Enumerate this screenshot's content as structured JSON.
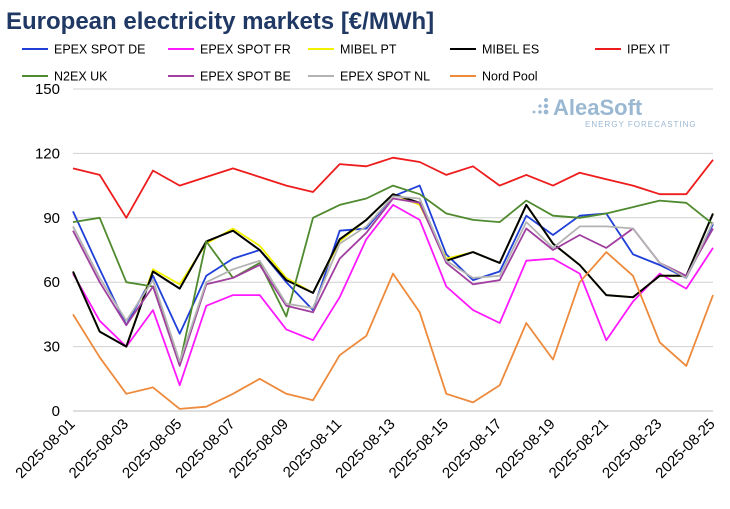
{
  "chart_data": {
    "type": "line",
    "title": "European electricity markets [€/MWh]",
    "ylim": [
      0,
      150
    ],
    "yticks": [
      0,
      30,
      60,
      90,
      120,
      150
    ],
    "x": [
      "2025-08-01",
      "2025-08-02",
      "2025-08-03",
      "2025-08-04",
      "2025-08-05",
      "2025-08-06",
      "2025-08-07",
      "2025-08-08",
      "2025-08-09",
      "2025-08-10",
      "2025-08-11",
      "2025-08-12",
      "2025-08-13",
      "2025-08-14",
      "2025-08-15",
      "2025-08-16",
      "2025-08-17",
      "2025-08-18",
      "2025-08-19",
      "2025-08-20",
      "2025-08-21",
      "2025-08-22",
      "2025-08-23",
      "2025-08-24",
      "2025-08-25"
    ],
    "xtick_labels": [
      "2025-08-01",
      "2025-08-03",
      "2025-08-05",
      "2025-08-07",
      "2025-08-09",
      "2025-08-11",
      "2025-08-13",
      "2025-08-15",
      "2025-08-17",
      "2025-08-19",
      "2025-08-21",
      "2025-08-23",
      "2025-08-25"
    ],
    "grid": "horizontal",
    "legend_position": "top",
    "series": [
      {
        "name": "EPEX SPOT DE",
        "color": "#1f3fd8",
        "values": [
          93,
          66,
          40,
          63,
          36,
          63,
          71,
          75,
          60,
          47,
          84,
          85,
          100,
          105,
          73,
          61,
          65,
          91,
          82,
          91,
          92,
          73,
          68,
          62,
          87
        ]
      },
      {
        "name": "EPEX SPOT FR",
        "color": "#ff19ff",
        "values": [
          64,
          42,
          30,
          47,
          12,
          49,
          54,
          54,
          38,
          33,
          53,
          80,
          96,
          89,
          58,
          47,
          41,
          70,
          71,
          64,
          33,
          51,
          64,
          57,
          76
        ]
      },
      {
        "name": "MIBEL PT",
        "color": "#f2f200",
        "values": [
          65,
          37,
          30,
          66,
          59,
          78,
          85,
          77,
          62,
          55,
          79,
          89,
          101,
          96,
          71,
          74,
          69,
          96,
          78,
          68,
          54,
          53,
          63,
          63,
          92
        ]
      },
      {
        "name": "MIBEL ES",
        "color": "#000000",
        "values": [
          65,
          37,
          30,
          65,
          57,
          79,
          84,
          75,
          61,
          55,
          80,
          89,
          101,
          97,
          70,
          74,
          69,
          96,
          78,
          68,
          54,
          53,
          63,
          63,
          92
        ]
      },
      {
        "name": "IPEX IT",
        "color": "#ee1c1c",
        "values": [
          113,
          110,
          90,
          112,
          105,
          109,
          113,
          109,
          105,
          102,
          115,
          114,
          118,
          116,
          110,
          114,
          105,
          110,
          105,
          111,
          108,
          105,
          101,
          101,
          117
        ]
      },
      {
        "name": "N2EX UK",
        "color": "#4f8a2e",
        "values": [
          88,
          90,
          60,
          58,
          22,
          79,
          62,
          69,
          44,
          90,
          96,
          99,
          105,
          101,
          92,
          89,
          88,
          98,
          91,
          90,
          92,
          95,
          98,
          97,
          87
        ]
      },
      {
        "name": "EPEX SPOT BE",
        "color": "#a03f9f",
        "values": [
          84,
          60,
          40,
          58,
          21,
          59,
          62,
          68,
          49,
          46,
          71,
          83,
          99,
          97,
          69,
          59,
          61,
          85,
          75,
          82,
          76,
          85,
          69,
          63,
          85
        ]
      },
      {
        "name": "EPEX SPOT NL",
        "color": "#b3b3b3",
        "values": [
          86,
          62,
          42,
          61,
          23,
          60,
          66,
          70,
          50,
          48,
          78,
          86,
          100,
          99,
          70,
          62,
          63,
          88,
          76,
          86,
          86,
          85,
          69,
          62,
          88
        ]
      },
      {
        "name": "Nord Pool",
        "color": "#ed8a3c",
        "values": [
          45,
          25,
          8,
          11,
          1,
          2,
          8,
          15,
          8,
          5,
          26,
          35,
          64,
          46,
          8,
          4,
          12,
          41,
          24,
          60,
          74,
          63,
          32,
          21,
          54
        ]
      }
    ]
  },
  "brand": {
    "name": "AleaSoft",
    "tagline": "ENERGY FORECASTING"
  }
}
